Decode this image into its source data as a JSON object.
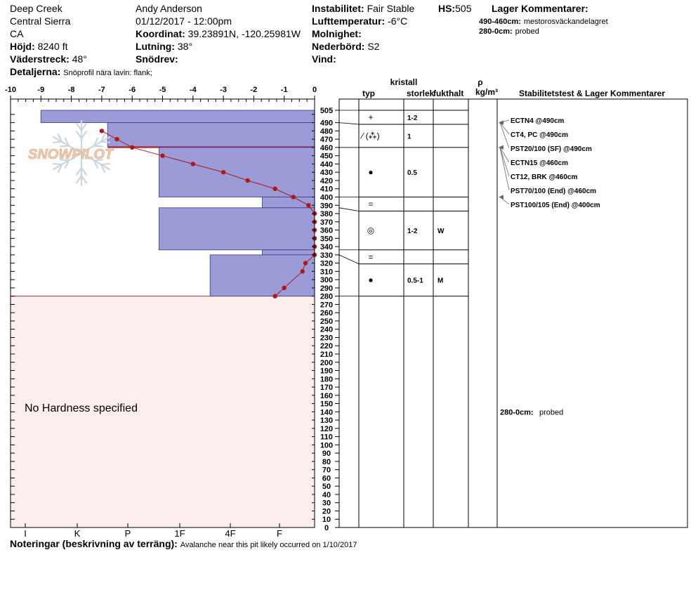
{
  "header": {
    "location": "Deep Creek",
    "region": "Central Sierra",
    "state": "CA",
    "elevation_label": "Höjd:",
    "elevation_value": "8240 ft",
    "aspect_label": "Väderstreck:",
    "aspect_value": "48°",
    "details_label": "Detaljerna:",
    "details_value": "Snöprofil nära lavin: flank;",
    "observer": "Andy Anderson",
    "datetime": "01/12/2017 - 12:00pm",
    "coord_label": "Koordinat:",
    "coord_value": "39.23891N, -120.25981W",
    "slope_label": "Lutning:",
    "slope_value": "38°",
    "drift_label": "Snödrev:",
    "drift_value": "",
    "stability_label": "Instabilitet:",
    "stability_value": "Fair Stable",
    "hs_label": "HS:",
    "hs_value": "505",
    "airtemp_label": "Lufttemperatur:",
    "airtemp_value": "-6°C",
    "sky_label": "Molnighet:",
    "sky_value": "",
    "precip_label": "Nederbörd:",
    "precip_value": "S2",
    "wind_label": "Vind:",
    "wind_value": "",
    "layer_comments_title": "Lager Kommentarer:",
    "layer_comments": [
      {
        "range": "490-460cm:",
        "text": "mestorosväckandelagret"
      },
      {
        "range": "280-0cm:",
        "text": "probed"
      }
    ]
  },
  "footer": {
    "notes_label": "Noteringar (beskrivning av terräng):",
    "notes_value": "Avalanche near this pit likely occurred on 1/10/2017"
  },
  "logo_text": "SNOWPILOT",
  "colors": {
    "hardness_fill": "#9b9bd8",
    "hardness_stroke": "#3a3a8a",
    "temp_line": "#b01818",
    "no_data_fill": "#fdeeee",
    "no_data_border": "#b03030"
  },
  "chart_data": {
    "type": "snow_profile",
    "temp_axis": {
      "ticks": [
        "-10",
        "-9",
        "-8",
        "-7",
        "-6",
        "-5",
        "-4",
        "-3",
        "-2",
        "-1",
        "0"
      ],
      "range": [
        -10,
        0
      ]
    },
    "depth_axis": {
      "range": [
        0,
        505
      ],
      "ticks": [
        505,
        490,
        480,
        470,
        460,
        450,
        440,
        430,
        420,
        410,
        400,
        390,
        380,
        370,
        360,
        350,
        340,
        330,
        320,
        310,
        300,
        290,
        280,
        270,
        260,
        250,
        240,
        230,
        220,
        210,
        200,
        190,
        180,
        170,
        160,
        150,
        140,
        130,
        120,
        110,
        100,
        90,
        80,
        70,
        60,
        50,
        40,
        30,
        20,
        10,
        0
      ]
    },
    "hardness_axis": {
      "labels": [
        "I",
        "K",
        "P",
        "1F",
        "4F",
        "F"
      ]
    },
    "hardness_layers": [
      {
        "top": 505,
        "bottom": 490,
        "hardness_index": 0.3
      },
      {
        "top": 490,
        "bottom": 461,
        "hardness_index": 1.6
      },
      {
        "top": 461,
        "bottom": 460,
        "hardness_index": 1.6,
        "critical": true
      },
      {
        "top": 460,
        "bottom": 400,
        "hardness_index": 2.6
      },
      {
        "top": 400,
        "bottom": 387,
        "hardness_index": 4.65
      },
      {
        "top": 387,
        "bottom": 336,
        "hardness_index": 2.6
      },
      {
        "top": 336,
        "bottom": 330,
        "hardness_index": 4.65
      },
      {
        "top": 330,
        "bottom": 280,
        "hardness_index": 3.6
      }
    ],
    "temperature_profile": [
      {
        "depth": 480,
        "temp": -7.0
      },
      {
        "depth": 470,
        "temp": -6.5
      },
      {
        "depth": 460,
        "temp": -6.0
      },
      {
        "depth": 450,
        "temp": -5.0
      },
      {
        "depth": 440,
        "temp": -4.0
      },
      {
        "depth": 430,
        "temp": -3.0
      },
      {
        "depth": 420,
        "temp": -2.2
      },
      {
        "depth": 410,
        "temp": -1.3
      },
      {
        "depth": 400,
        "temp": -0.7
      },
      {
        "depth": 390,
        "temp": -0.2
      },
      {
        "depth": 380,
        "temp": 0.0
      },
      {
        "depth": 370,
        "temp": 0.0
      },
      {
        "depth": 360,
        "temp": 0.0
      },
      {
        "depth": 350,
        "temp": 0.0
      },
      {
        "depth": 340,
        "temp": 0.0
      },
      {
        "depth": 330,
        "temp": 0.0
      },
      {
        "depth": 320,
        "temp": -0.3
      },
      {
        "depth": 310,
        "temp": -0.4
      },
      {
        "depth": 290,
        "temp": -1.0
      },
      {
        "depth": 280,
        "temp": -1.3
      }
    ],
    "no_hardness_region": {
      "top": 280,
      "bottom": 0,
      "label": "No Hardness specified"
    },
    "column_headers": {
      "crystal": "kristall",
      "type": "typ",
      "size": "storlek",
      "moisture": "fukthalt",
      "density_symbol": "ρ",
      "density_unit": "kg/m³",
      "stability": "Stabilitetstest & Lager Kommentarer"
    },
    "layer_rows": [
      {
        "top": 505,
        "bottom": 490,
        "type_symbol": "+",
        "size": "1-2",
        "moisture": ""
      },
      {
        "top": 490,
        "bottom": 460,
        "type_symbol": "⁄ (⁂)",
        "size": "1",
        "moisture": ""
      },
      {
        "top": 460,
        "bottom": 400,
        "type_symbol": "●",
        "size": "0.5",
        "moisture": ""
      },
      {
        "top": 400,
        "bottom": 387,
        "type_symbol": "=",
        "size": "",
        "moisture": ""
      },
      {
        "top": 387,
        "bottom": 336,
        "type_symbol": "◎",
        "size": "1-2",
        "moisture": "W"
      },
      {
        "top": 336,
        "bottom": 330,
        "type_symbol": "=",
        "size": "",
        "moisture": ""
      },
      {
        "top": 330,
        "bottom": 280,
        "type_symbol": "●",
        "size": "0.5-1",
        "moisture": "M"
      }
    ],
    "stability_tests": [
      {
        "text": "ECTN4 @490cm",
        "depth": 490
      },
      {
        "text": "CT4, PC @490cm",
        "depth": 490
      },
      {
        "text": "PST20/100 (SF) @490cm",
        "depth": 490
      },
      {
        "text": "ECTN15 @460cm",
        "depth": 460
      },
      {
        "text": "CT12, BRK @460cm",
        "depth": 460
      },
      {
        "text": "PST70/100 (End) @460cm",
        "depth": 460
      },
      {
        "text": "PST100/105 (End) @400cm",
        "depth": 400
      }
    ],
    "side_comment": {
      "range": "280-0cm:",
      "text": "probed",
      "depth": 140
    }
  }
}
